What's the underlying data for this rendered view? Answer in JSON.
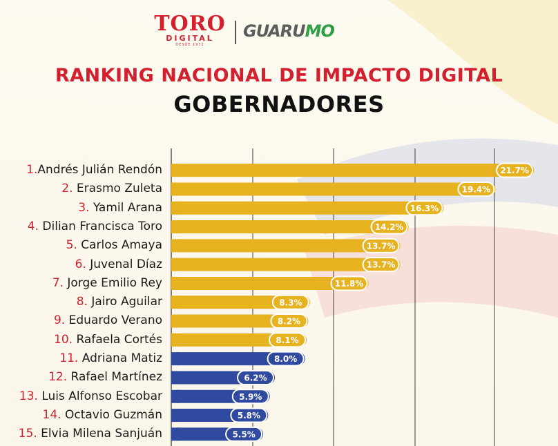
{
  "logos": {
    "toro_big": "TORO",
    "toro_mid": "DIGITAL",
    "toro_small": "DESDE 1972",
    "guarumo_a": "GUARU",
    "guarumo_b": "MO"
  },
  "title": "RANKING NACIONAL DE IMPACTO DIGITAL",
  "subtitle": "GOBERNADORES",
  "colors": {
    "gold": "#e7b21f",
    "blue": "#2f4a9e",
    "title_red": "#d3202e"
  },
  "chart_data": {
    "type": "bar",
    "orientation": "horizontal",
    "title": "RANKING NACIONAL DE IMPACTO DIGITAL",
    "subtitle": "GOBERNADORES",
    "unit": "%",
    "grid": true,
    "categories": [
      {
        "rank": "1.",
        "name": "Andrés Julián Rendón"
      },
      {
        "rank": "2.",
        "name": "Erasmo Zuleta"
      },
      {
        "rank": "3.",
        "name": "Yamil Arana"
      },
      {
        "rank": "4.",
        "name": "Dilian Francisca Toro"
      },
      {
        "rank": "5.",
        "name": "Carlos Amaya"
      },
      {
        "rank": "6.",
        "name": "Juvenal Díaz"
      },
      {
        "rank": "7.",
        "name": "Jorge Emilio Rey"
      },
      {
        "rank": "8.",
        "name": "Jairo Aguilar"
      },
      {
        "rank": "9.",
        "name": "Eduardo Verano"
      },
      {
        "rank": "10.",
        "name": "Rafaela Cortés"
      },
      {
        "rank": "11.",
        "name": "Adriana Matiz"
      },
      {
        "rank": "12.",
        "name": "Rafael Martínez"
      },
      {
        "rank": "13.",
        "name": "Luis Alfonso Escobar"
      },
      {
        "rank": "14.",
        "name": "Octavio Guzmán"
      },
      {
        "rank": "15.",
        "name": "Elvia Milena Sanjuán"
      }
    ],
    "values": [
      21.7,
      19.4,
      16.3,
      14.2,
      13.7,
      13.7,
      11.8,
      8.3,
      8.2,
      8.1,
      8.0,
      6.2,
      5.9,
      5.8,
      5.5
    ],
    "value_labels": [
      "21.7%",
      "19.4%",
      "16.3%",
      "14.2%",
      "13.7%",
      "13.7%",
      "11.8%",
      "8.3%",
      "8.2%",
      "8.1%",
      "8.0%",
      "6.2%",
      "5.9%",
      "5.8%",
      "5.5%"
    ],
    "bar_colors": [
      "gold",
      "gold",
      "gold",
      "gold",
      "gold",
      "gold",
      "gold",
      "gold",
      "gold",
      "gold",
      "blue",
      "blue",
      "blue",
      "blue",
      "blue"
    ]
  }
}
